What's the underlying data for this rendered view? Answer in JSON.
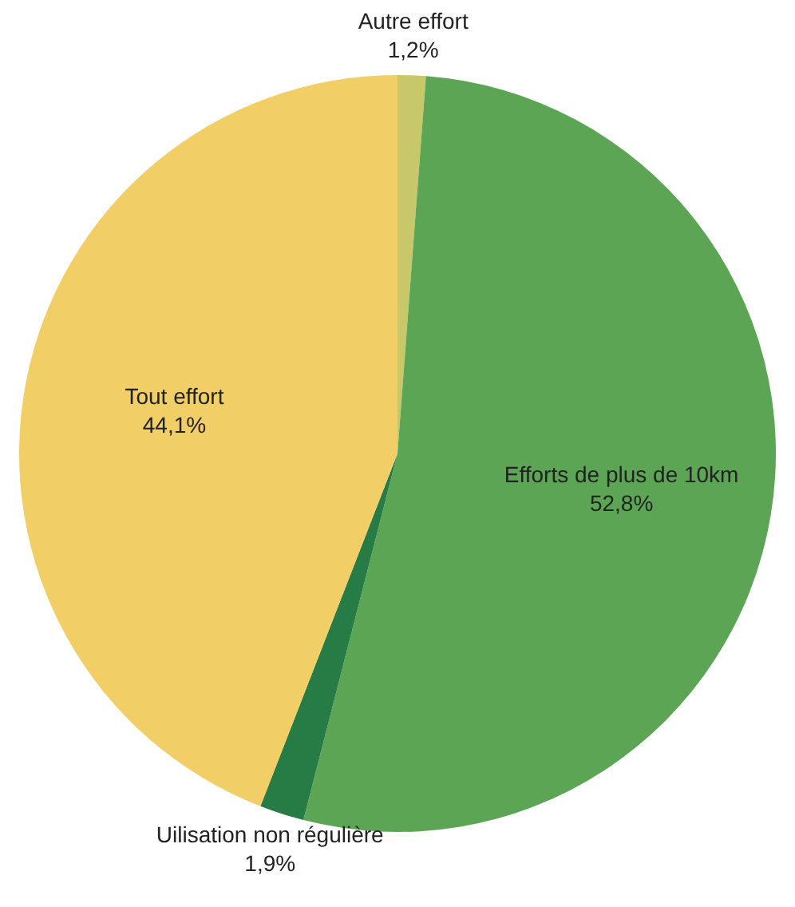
{
  "chart_data": {
    "type": "pie",
    "categories": [
      "Autre effort",
      "Efforts de plus de 10km",
      "Uilisation non régulière",
      "Tout effort"
    ],
    "values": [
      1.2,
      52.8,
      1.9,
      44.1
    ],
    "colors": [
      "#c8c86a",
      "#5ca555",
      "#277b45",
      "#f2cf66"
    ],
    "value_labels": [
      "1,2%",
      "52,8%",
      "1,9%",
      "44,1%"
    ]
  }
}
